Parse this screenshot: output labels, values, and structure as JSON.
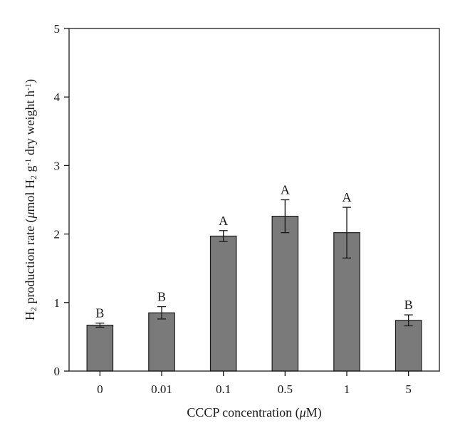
{
  "chart_data": {
    "type": "bar",
    "categories": [
      "0",
      "0.01",
      "0.1",
      "0.5",
      "1",
      "5"
    ],
    "values": [
      0.67,
      0.85,
      1.97,
      2.26,
      2.02,
      0.74
    ],
    "errors": [
      0.03,
      0.09,
      0.08,
      0.24,
      0.37,
      0.08
    ],
    "letters": [
      "B",
      "B",
      "A",
      "A",
      "A",
      "B"
    ],
    "xlabel_parts": [
      {
        "text": "CCCP concentration (",
        "style": "normal"
      },
      {
        "text": "μ",
        "style": "italic"
      },
      {
        "text": "M)",
        "style": "normal"
      }
    ],
    "ylabel_parts": [
      {
        "text": "H",
        "style": "normal"
      },
      {
        "text": "2",
        "style": "sub"
      },
      {
        "text": " production rate (",
        "style": "normal"
      },
      {
        "text": "μ",
        "style": "italic"
      },
      {
        "text": "mol H",
        "style": "normal"
      },
      {
        "text": "2",
        "style": "sub"
      },
      {
        "text": " g",
        "style": "normal"
      },
      {
        "text": "-1",
        "style": "sup"
      },
      {
        "text": " dry weight h",
        "style": "normal"
      },
      {
        "text": "-1",
        "style": "sup"
      },
      {
        "text": ")",
        "style": "normal"
      }
    ],
    "ylim": [
      0,
      5
    ],
    "yticks": [
      "0",
      "1",
      "2",
      "3",
      "4",
      "5"
    ],
    "grid": false,
    "bar_color": "#7a7a7a",
    "edge_color": "#1a1a1a"
  }
}
